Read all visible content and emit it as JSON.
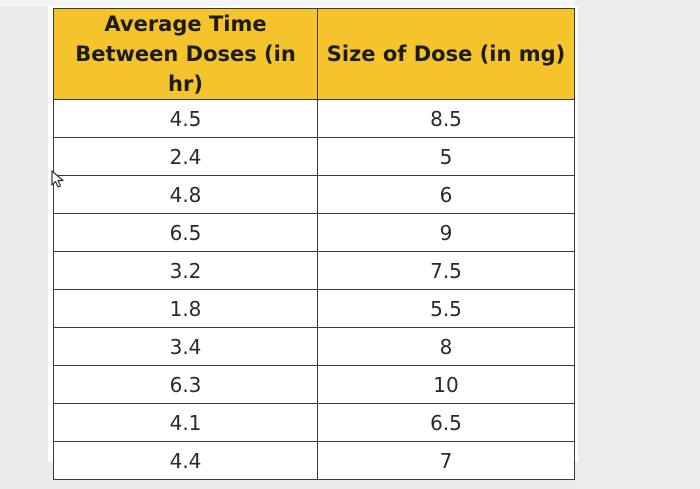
{
  "table": {
    "headers": [
      "Average Time Between Doses (in hr)",
      "Size of Dose (in mg)"
    ],
    "rows": [
      [
        "4.5",
        "8.5"
      ],
      [
        "2.4",
        "5"
      ],
      [
        "4.8",
        "6"
      ],
      [
        "6.5",
        "9"
      ],
      [
        "3.2",
        "7.5"
      ],
      [
        "1.8",
        "5.5"
      ],
      [
        "3.4",
        "8"
      ],
      [
        "6.3",
        "10"
      ],
      [
        "4.1",
        "6.5"
      ],
      [
        "4.4",
        "7"
      ]
    ]
  },
  "colors": {
    "header_fill": "#f5c32c",
    "border": "#3a3a3a",
    "page_background": "#e9ebed"
  },
  "icons": {
    "cursor": "mouse-pointer-icon"
  }
}
